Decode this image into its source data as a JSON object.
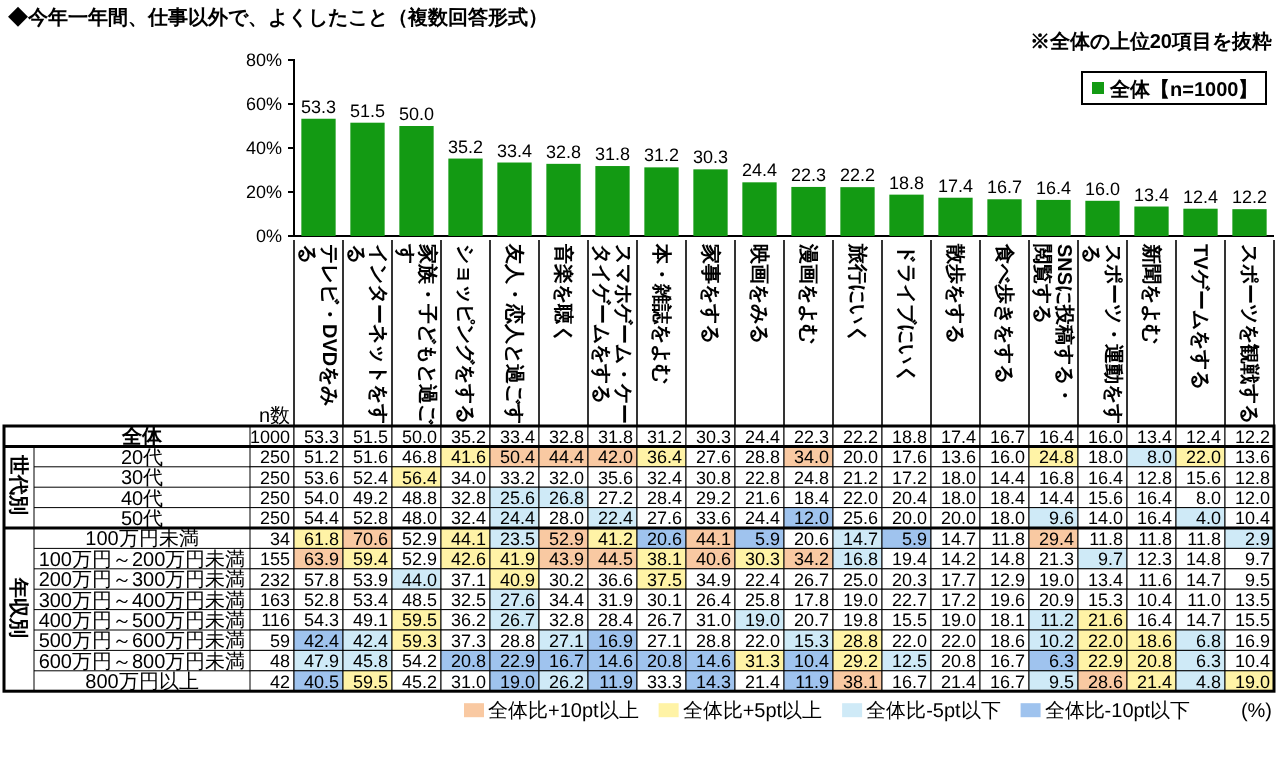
{
  "chart_data": [
    {
      "type": "bar",
      "title": "◆今年一年間、仕事以外で、よくしたこと（複数回答形式）",
      "annotations": [
        "※全体の上位20項目を抜粋"
      ],
      "categories": [
        null,
        null,
        null,
        null,
        null,
        null,
        null,
        null,
        null,
        null,
        null,
        null,
        null,
        null,
        null,
        null,
        null,
        null,
        null,
        null
      ],
      "series": [
        {
          "name": "全体【n=1000】",
          "color": "#139a13",
          "values": [
            53.3,
            51.5,
            50.0,
            35.2,
            33.4,
            32.8,
            31.8,
            31.2,
            30.3,
            24.4,
            22.3,
            22.2,
            18.8,
            17.4,
            16.7,
            16.4,
            16.0,
            13.4,
            12.4,
            12.2
          ],
          "value_labels": [
            "53.3",
            "51.5",
            "50.0",
            "35.2",
            "33.4",
            "32.8",
            "31.8",
            "31.2",
            "30.3",
            "24.4",
            "22.3",
            "22.2",
            "18.8",
            "17.4",
            "16.7",
            "16.4",
            "16.0",
            "13.4",
            "12.4",
            "12.2"
          ]
        }
      ],
      "ylim": [
        0,
        80
      ],
      "yticks": [
        {
          "value": 0,
          "label": "0%"
        },
        {
          "value": 20,
          "label": "20%"
        },
        {
          "value": 40,
          "label": "40%"
        },
        {
          "value": 60,
          "label": "60%"
        },
        {
          "value": 80,
          "label": "80%"
        }
      ],
      "legend": "top right",
      "data_labels": true,
      "grid": false
    },
    {
      "type": "heatmap",
      "annotations": [
        "世代別",
        "年収別",
        "全体比+10pt以上",
        "全体比+5pt以上",
        "全体比-5pt以下",
        "全体比-10pt以下",
        "(%)"
      ],
      "categories": [
        "n数",
        "テレビ・DVDをみる",
        "インターネットをする",
        "家族・子どもと過ごす",
        "ショッピングをする",
        "友人・恋人と過ごす",
        "音楽を聴く",
        "スマホゲーム・ケータイゲームをする",
        "本・雑誌をよむ",
        "家事をする",
        "映画をみる",
        "漫画をよむ",
        "旅行にいく",
        "ドライブにいく",
        "散歩をする",
        "食べ歩きをする",
        "SNSに投稿する・閲覧する",
        "スポーツ・運動をする",
        "新聞をよむ",
        "TVゲームをする",
        "スポーツを観戦する"
      ],
      "y_categories": [
        "全体",
        "20代",
        "30代",
        "40代",
        "50代",
        "100万円未満",
        "100万円～200万円未満",
        "200万円～300万円未満",
        "300万円～400万円未満",
        "400万円～500万円未満",
        "500万円～600万円未満",
        "600万円～800万円未満",
        "800万円以上"
      ],
      "cells": [
        [
          1000,
          53.3,
          51.5,
          50.0,
          35.2,
          33.4,
          32.8,
          31.8,
          31.2,
          30.3,
          24.4,
          22.3,
          22.2,
          18.8,
          17.4,
          16.7,
          16.4,
          16.0,
          13.4,
          12.4,
          12.2
        ],
        [
          250,
          51.2,
          51.6,
          46.8,
          41.6,
          50.4,
          44.4,
          42.0,
          36.4,
          27.6,
          28.8,
          34.0,
          20.0,
          17.6,
          13.6,
          16.0,
          24.8,
          18.0,
          8.0,
          22.0,
          13.6
        ],
        [
          250,
          53.6,
          52.4,
          56.4,
          34.0,
          33.2,
          32.0,
          35.6,
          32.4,
          30.8,
          22.8,
          24.8,
          21.2,
          17.2,
          18.0,
          14.4,
          16.8,
          16.4,
          12.8,
          15.6,
          12.8
        ],
        [
          250,
          54.0,
          49.2,
          48.8,
          32.8,
          25.6,
          26.8,
          27.2,
          28.4,
          29.2,
          21.6,
          18.4,
          22.0,
          20.4,
          18.0,
          18.4,
          14.4,
          15.6,
          16.4,
          8.0,
          12.0
        ],
        [
          250,
          54.4,
          52.8,
          48.0,
          32.4,
          24.4,
          28.0,
          22.4,
          27.6,
          33.6,
          24.4,
          12.0,
          25.6,
          20.0,
          20.0,
          18.0,
          9.6,
          14.0,
          16.4,
          4.0,
          10.4
        ],
        [
          34,
          61.8,
          70.6,
          52.9,
          44.1,
          23.5,
          52.9,
          41.2,
          20.6,
          44.1,
          5.9,
          20.6,
          14.7,
          5.9,
          14.7,
          11.8,
          29.4,
          11.8,
          11.8,
          11.8,
          2.9
        ],
        [
          155,
          63.9,
          59.4,
          52.9,
          42.6,
          41.9,
          43.9,
          44.5,
          38.1,
          40.6,
          30.3,
          34.2,
          16.8,
          19.4,
          14.2,
          14.8,
          21.3,
          9.7,
          12.3,
          14.8,
          9.7
        ],
        [
          232,
          57.8,
          53.9,
          44.0,
          37.1,
          40.9,
          30.2,
          36.6,
          37.5,
          34.9,
          22.4,
          26.7,
          25.0,
          20.3,
          17.7,
          12.9,
          19.0,
          13.4,
          11.6,
          14.7,
          9.5
        ],
        [
          163,
          52.8,
          53.4,
          48.5,
          32.5,
          27.6,
          34.4,
          31.9,
          30.1,
          26.4,
          25.8,
          17.8,
          19.0,
          22.7,
          17.2,
          19.6,
          20.9,
          15.3,
          10.4,
          11.0,
          13.5
        ],
        [
          116,
          54.3,
          49.1,
          59.5,
          36.2,
          26.7,
          32.8,
          28.4,
          26.7,
          31.0,
          19.0,
          20.7,
          19.8,
          15.5,
          19.0,
          18.1,
          11.2,
          21.6,
          16.4,
          14.7,
          15.5
        ],
        [
          59,
          42.4,
          42.4,
          59.3,
          37.3,
          28.8,
          27.1,
          16.9,
          27.1,
          28.8,
          22.0,
          15.3,
          28.8,
          22.0,
          22.0,
          18.6,
          10.2,
          22.0,
          18.6,
          6.8,
          16.9
        ],
        [
          48,
          47.9,
          45.8,
          54.2,
          20.8,
          22.9,
          16.7,
          14.6,
          20.8,
          14.6,
          31.3,
          10.4,
          29.2,
          12.5,
          20.8,
          16.7,
          6.3,
          22.9,
          20.8,
          6.3,
          10.4
        ],
        [
          42,
          40.5,
          59.5,
          45.2,
          31.0,
          19.0,
          26.2,
          11.9,
          33.3,
          14.3,
          21.4,
          11.9,
          38.1,
          16.7,
          21.4,
          16.7,
          9.5,
          28.6,
          21.4,
          4.8,
          19.0
        ]
      ],
      "cell_labels": [
        [
          "1000",
          "53.3",
          "51.5",
          "50.0",
          "35.2",
          "33.4",
          "32.8",
          "31.8",
          "31.2",
          "30.3",
          "24.4",
          "22.3",
          "22.2",
          "18.8",
          "17.4",
          "16.7",
          "16.4",
          "16.0",
          "13.4",
          "12.4",
          "12.2"
        ],
        [
          "250",
          "51.2",
          "51.6",
          "46.8",
          "41.6",
          "50.4",
          "44.4",
          "42.0",
          "36.4",
          "27.6",
          "28.8",
          "34.0",
          "20.0",
          "17.6",
          "13.6",
          "16.0",
          "24.8",
          "18.0",
          "8.0",
          "22.0",
          "13.6"
        ],
        [
          "250",
          "53.6",
          "52.4",
          "56.4",
          "34.0",
          "33.2",
          "32.0",
          "35.6",
          "32.4",
          "30.8",
          "22.8",
          "24.8",
          "21.2",
          "17.2",
          "18.0",
          "14.4",
          "16.8",
          "16.4",
          "12.8",
          "15.6",
          "12.8"
        ],
        [
          "250",
          "54.0",
          "49.2",
          "48.8",
          "32.8",
          "25.6",
          "26.8",
          "27.2",
          "28.4",
          "29.2",
          "21.6",
          "18.4",
          "22.0",
          "20.4",
          "18.0",
          "18.4",
          "14.4",
          "15.6",
          "16.4",
          "8.0",
          "12.0"
        ],
        [
          "250",
          "54.4",
          "52.8",
          "48.0",
          "32.4",
          "24.4",
          "28.0",
          "22.4",
          "27.6",
          "33.6",
          "24.4",
          "12.0",
          "25.6",
          "20.0",
          "20.0",
          "18.0",
          "9.6",
          "14.0",
          "16.4",
          "4.0",
          "10.4"
        ],
        [
          "34",
          "61.8",
          "70.6",
          "52.9",
          "44.1",
          "23.5",
          "52.9",
          "41.2",
          "20.6",
          "44.1",
          "5.9",
          "20.6",
          "14.7",
          "5.9",
          "14.7",
          "11.8",
          "29.4",
          "11.8",
          "11.8",
          "11.8",
          "2.9"
        ],
        [
          "155",
          "63.9",
          "59.4",
          "52.9",
          "42.6",
          "41.9",
          "43.9",
          "44.5",
          "38.1",
          "40.6",
          "30.3",
          "34.2",
          "16.8",
          "19.4",
          "14.2",
          "14.8",
          "21.3",
          "9.7",
          "12.3",
          "14.8",
          "9.7"
        ],
        [
          "232",
          "57.8",
          "53.9",
          "44.0",
          "37.1",
          "40.9",
          "30.2",
          "36.6",
          "37.5",
          "34.9",
          "22.4",
          "26.7",
          "25.0",
          "20.3",
          "17.7",
          "12.9",
          "19.0",
          "13.4",
          "11.6",
          "14.7",
          "9.5"
        ],
        [
          "163",
          "52.8",
          "53.4",
          "48.5",
          "32.5",
          "27.6",
          "34.4",
          "31.9",
          "30.1",
          "26.4",
          "25.8",
          "17.8",
          "19.0",
          "22.7",
          "17.2",
          "19.6",
          "20.9",
          "15.3",
          "10.4",
          "11.0",
          "13.5"
        ],
        [
          "116",
          "54.3",
          "49.1",
          "59.5",
          "36.2",
          "26.7",
          "32.8",
          "28.4",
          "26.7",
          "31.0",
          "19.0",
          "20.7",
          "19.8",
          "15.5",
          "19.0",
          "18.1",
          "11.2",
          "21.6",
          "16.4",
          "14.7",
          "15.5"
        ],
        [
          "59",
          "42.4",
          "42.4",
          "59.3",
          "37.3",
          "28.8",
          "27.1",
          "16.9",
          "27.1",
          "28.8",
          "22.0",
          "15.3",
          "28.8",
          "22.0",
          "22.0",
          "18.6",
          "10.2",
          "22.0",
          "18.6",
          "6.8",
          "16.9"
        ],
        [
          "48",
          "47.9",
          "45.8",
          "54.2",
          "20.8",
          "22.9",
          "16.7",
          "14.6",
          "20.8",
          "14.6",
          "31.3",
          "10.4",
          "29.2",
          "12.5",
          "20.8",
          "16.7",
          "6.3",
          "22.9",
          "20.8",
          "6.3",
          "10.4"
        ],
        [
          "42",
          "40.5",
          "59.5",
          "45.2",
          "31.0",
          "19.0",
          "26.2",
          "11.9",
          "33.3",
          "14.3",
          "21.4",
          "11.9",
          "38.1",
          "16.7",
          "21.4",
          "16.7",
          "9.5",
          "28.6",
          "21.4",
          "4.8",
          "19.0"
        ]
      ]
    }
  ]
}
